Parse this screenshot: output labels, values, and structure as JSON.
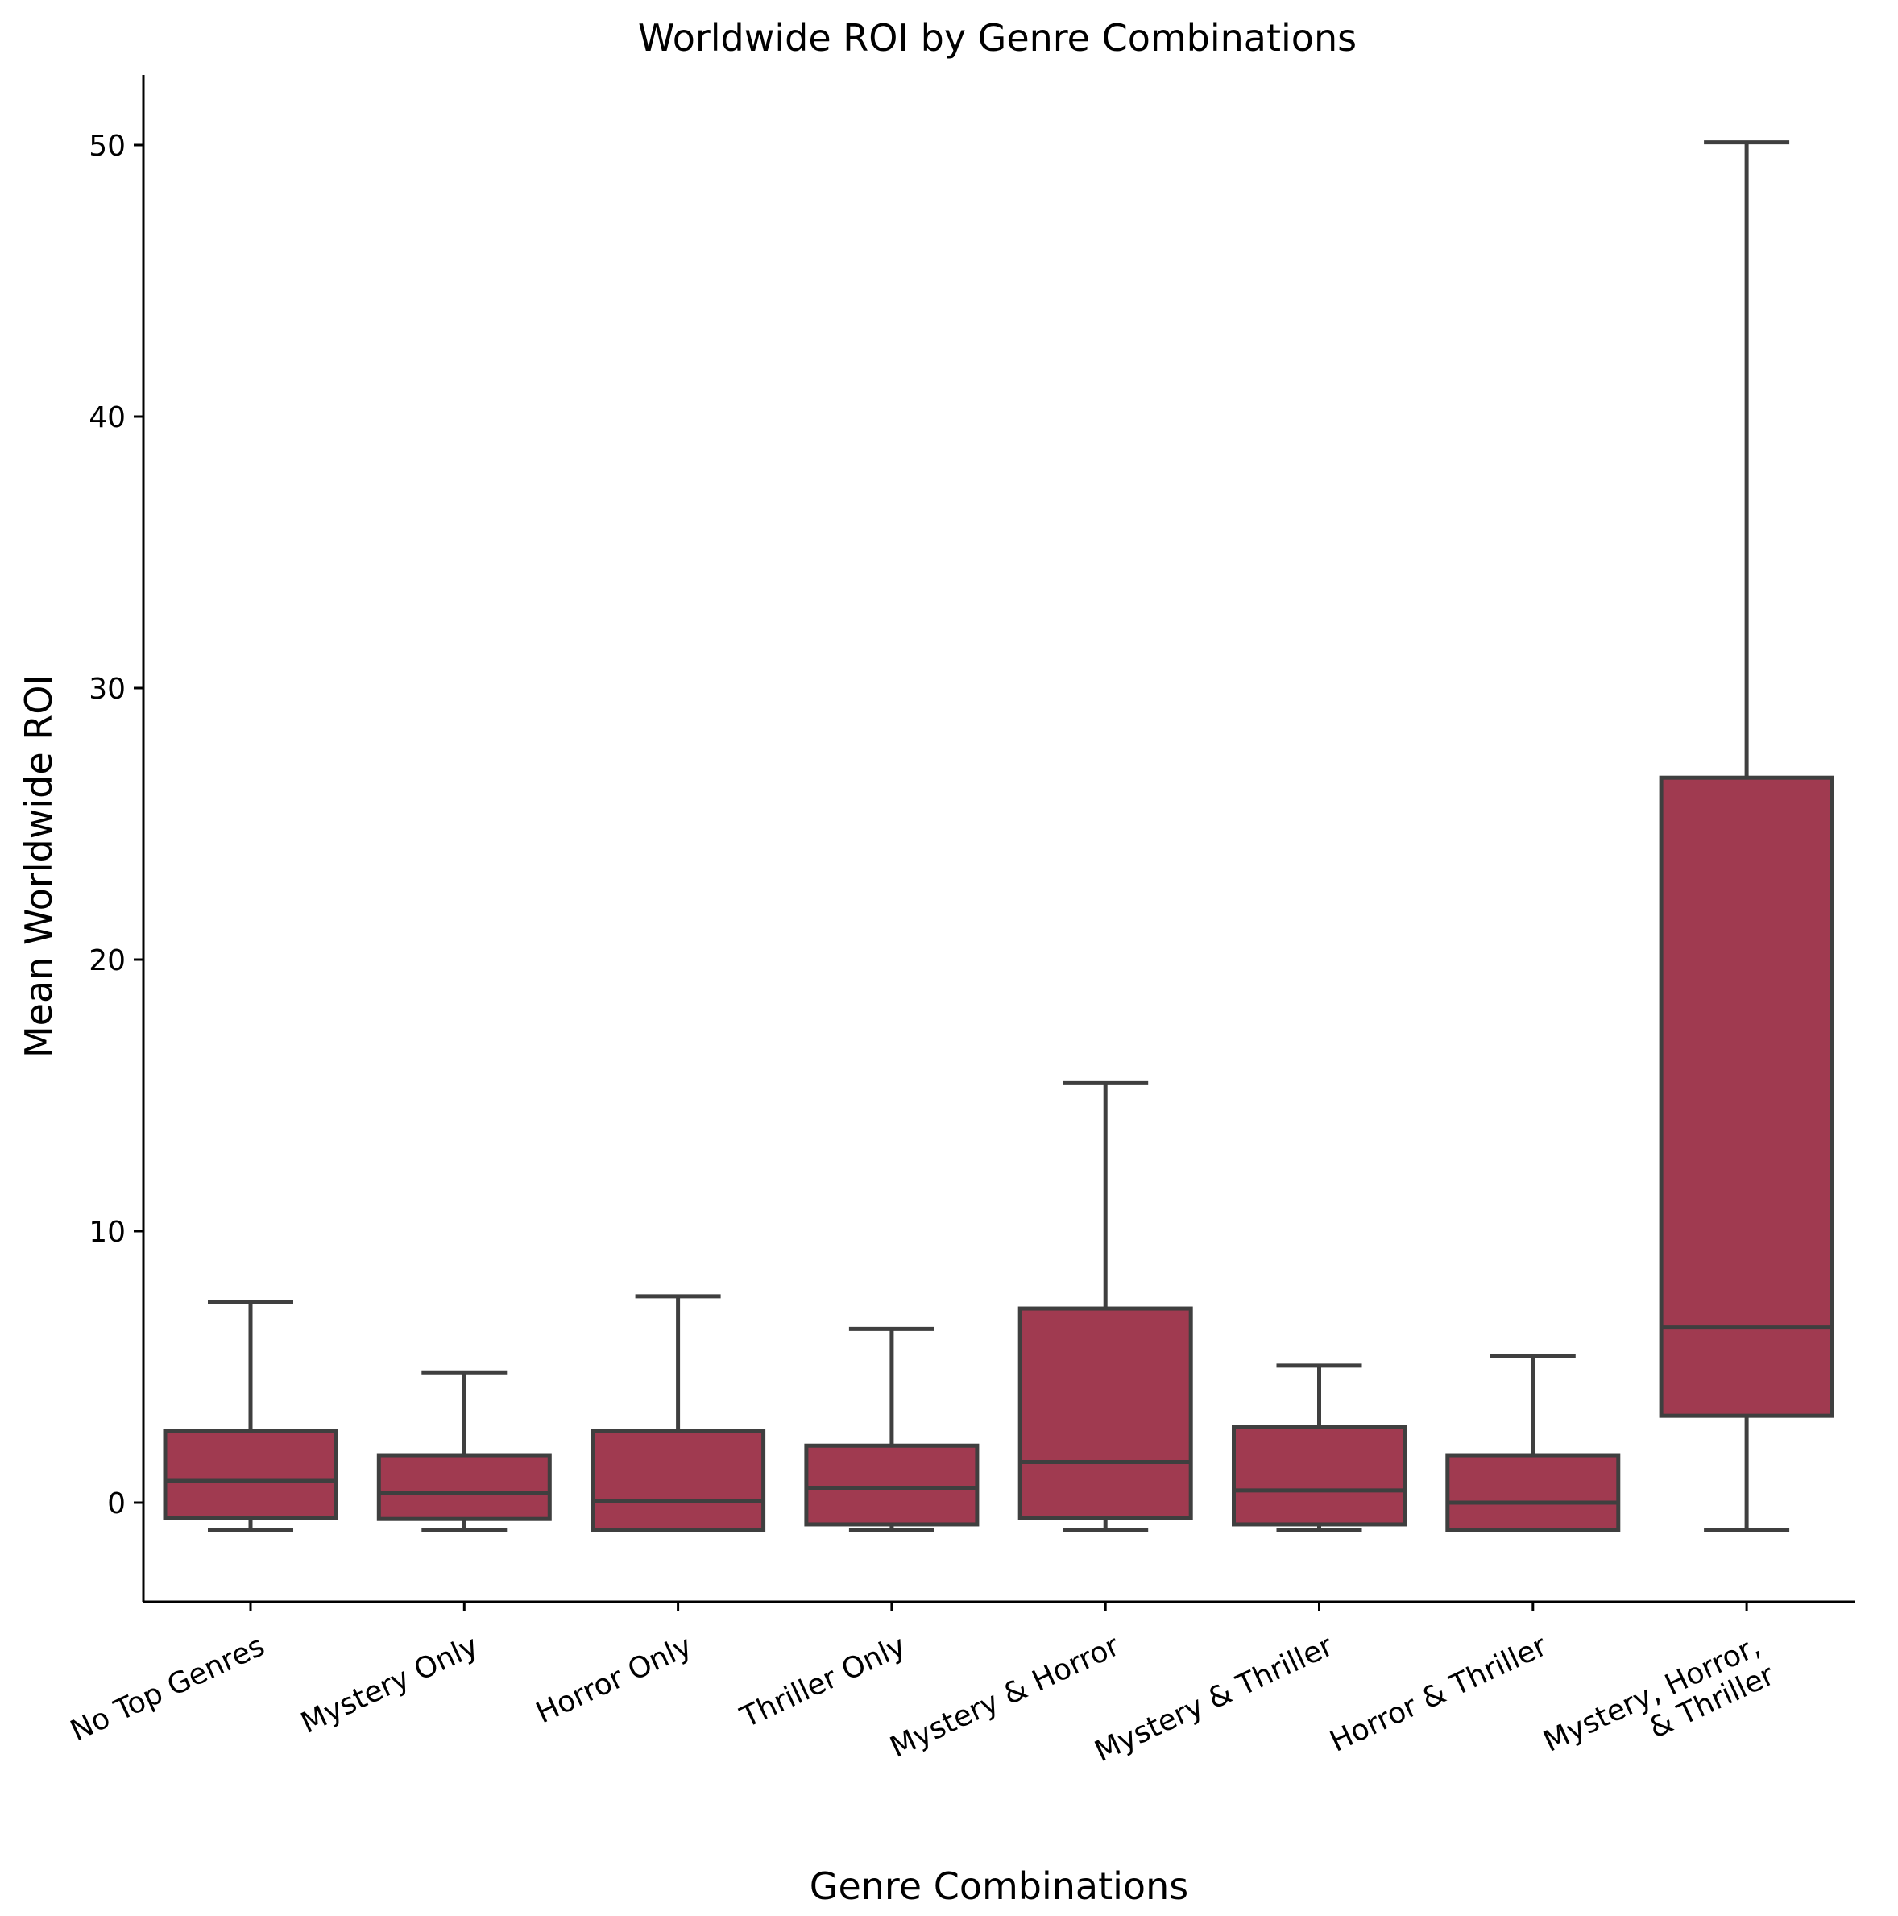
{
  "chart_data": {
    "type": "boxplot",
    "title": "Worldwide ROI by Genre Combinations",
    "xlabel": "Genre Combinations",
    "ylabel": "Mean Worldwide ROI",
    "ylim": [
      -3.6,
      52.6
    ],
    "yticks": [
      0,
      10,
      20,
      30,
      40,
      50
    ],
    "ytick_labels": [
      "0",
      "10",
      "20",
      "30",
      "40",
      "50"
    ],
    "grid": false,
    "box_color": "#a03a50",
    "line_color": "#3f3f3f",
    "categories": [
      [
        "No Top Genres"
      ],
      [
        "Mystery Only"
      ],
      [
        "Horror Only"
      ],
      [
        "Thriller Only"
      ],
      [
        "Mystery & Horror"
      ],
      [
        "Mystery & Thriller"
      ],
      [
        "Horror & Thriller"
      ],
      [
        "Mystery, Horror,",
        "& Thriller"
      ]
    ],
    "boxes": [
      {
        "whislo": -1.0,
        "q1": -0.55,
        "med": 0.8,
        "q3": 2.65,
        "whishi": 7.4
      },
      {
        "whislo": -1.0,
        "q1": -0.6,
        "med": 0.35,
        "q3": 1.75,
        "whishi": 4.8
      },
      {
        "whislo": -1.0,
        "q1": -1.0,
        "med": 0.05,
        "q3": 2.65,
        "whishi": 7.6
      },
      {
        "whislo": -1.0,
        "q1": -0.8,
        "med": 0.55,
        "q3": 2.1,
        "whishi": 6.4
      },
      {
        "whislo": -1.0,
        "q1": -0.55,
        "med": 1.5,
        "q3": 7.15,
        "whishi": 15.45
      },
      {
        "whislo": -1.0,
        "q1": -0.8,
        "med": 0.45,
        "q3": 2.8,
        "whishi": 5.05
      },
      {
        "whislo": -1.0,
        "q1": -1.0,
        "med": 0.0,
        "q3": 1.75,
        "whishi": 5.4
      },
      {
        "whislo": -1.0,
        "q1": 3.2,
        "med": 6.45,
        "q3": 26.7,
        "whishi": 50.1
      }
    ]
  }
}
